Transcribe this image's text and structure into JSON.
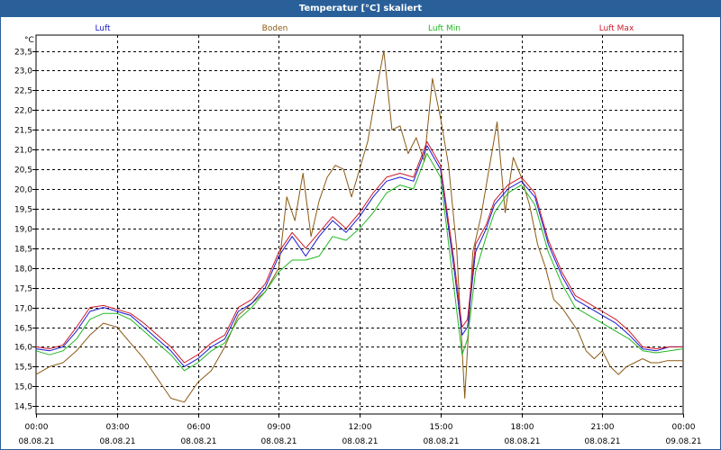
{
  "window": {
    "title": "Temperatur [°C] skaliert"
  },
  "chart_data": {
    "type": "line",
    "title": "Temperatur [°C] skaliert",
    "ylabel": "°C",
    "xlabel": "",
    "ylim": [
      14.3,
      23.9
    ],
    "xlim": [
      0,
      24
    ],
    "grid": true,
    "y_ticks": [
      14.5,
      15.0,
      15.5,
      16.0,
      16.5,
      17.0,
      17.5,
      18.0,
      18.5,
      19.0,
      19.5,
      20.0,
      20.5,
      21.0,
      21.5,
      22.0,
      22.5,
      23.0,
      23.5
    ],
    "y_tick_labels": [
      "14,5",
      "15,0",
      "15,5",
      "16,0",
      "16,5",
      "17,0",
      "17,5",
      "18,0",
      "18,5",
      "19,0",
      "19,5",
      "20,0",
      "20,5",
      "21,0",
      "21,5",
      "22,0",
      "22,5",
      "23,0",
      "23,5"
    ],
    "x_ticks": [
      {
        "value": 0,
        "time": "00:00",
        "date": "08.08.21"
      },
      {
        "value": 3,
        "time": "03:00",
        "date": "08.08.21"
      },
      {
        "value": 6,
        "time": "06:00",
        "date": "08.08.21"
      },
      {
        "value": 9,
        "time": "09:00",
        "date": "08.08.21"
      },
      {
        "value": 12,
        "time": "12:00",
        "date": "08.08.21"
      },
      {
        "value": 15,
        "time": "15:00",
        "date": "08.08.21"
      },
      {
        "value": 18,
        "time": "18:00",
        "date": "08.08.21"
      },
      {
        "value": 21,
        "time": "21:00",
        "date": "08.08.21"
      },
      {
        "value": 24,
        "time": "00:00",
        "date": "09.08.21"
      }
    ],
    "series": [
      {
        "name": "Luft",
        "color": "#1a1ad0",
        "x": [
          0,
          0.5,
          1,
          1.5,
          2,
          2.5,
          3,
          3.5,
          4,
          4.5,
          5,
          5.5,
          6,
          6.5,
          7,
          7.5,
          8,
          8.5,
          9,
          9.5,
          10,
          10.5,
          11,
          11.5,
          12,
          12.5,
          13,
          13.5,
          14,
          14.5,
          15,
          15.5,
          15.8,
          16,
          16.3,
          16.7,
          17,
          17.5,
          18,
          18.5,
          19,
          19.5,
          20,
          20.5,
          21,
          21.5,
          22,
          22.5,
          23,
          23.5,
          24
        ],
        "values": [
          15.95,
          15.9,
          16.0,
          16.4,
          16.9,
          17.0,
          16.9,
          16.8,
          16.5,
          16.2,
          15.9,
          15.5,
          15.7,
          16.0,
          16.2,
          16.9,
          17.1,
          17.5,
          18.3,
          18.8,
          18.3,
          18.8,
          19.2,
          18.9,
          19.3,
          19.8,
          20.2,
          20.3,
          20.2,
          21.1,
          20.5,
          18.0,
          16.3,
          16.5,
          18.4,
          19.0,
          19.6,
          20.0,
          20.2,
          19.8,
          18.6,
          17.8,
          17.2,
          17.0,
          16.8,
          16.6,
          16.3,
          15.95,
          15.9,
          16.0,
          16.0
        ]
      },
      {
        "name": "Boden",
        "color": "#8b5a14",
        "x": [
          0,
          0.5,
          1,
          1.5,
          2,
          2.5,
          3,
          3.5,
          4,
          4.5,
          5,
          5.5,
          6,
          6.5,
          7,
          7.5,
          8,
          8.5,
          9,
          9.3,
          9.6,
          9.9,
          10.2,
          10.5,
          10.8,
          11.1,
          11.4,
          11.7,
          12,
          12.3,
          12.6,
          12.9,
          13.2,
          13.5,
          13.8,
          14.1,
          14.4,
          14.7,
          15,
          15.3,
          15.6,
          15.9,
          16.2,
          16.5,
          16.8,
          17.1,
          17.4,
          17.7,
          18,
          18.3,
          18.6,
          18.9,
          19.2,
          19.5,
          19.8,
          20.1,
          20.4,
          20.7,
          21,
          21.3,
          21.6,
          21.9,
          22.2,
          22.5,
          22.8,
          23.1,
          23.4,
          23.7,
          24
        ],
        "values": [
          15.3,
          15.5,
          15.6,
          15.9,
          16.3,
          16.6,
          16.5,
          16.1,
          15.7,
          15.2,
          14.7,
          14.6,
          15.1,
          15.4,
          16.0,
          16.8,
          17.1,
          17.4,
          18.0,
          19.8,
          19.2,
          20.4,
          18.8,
          19.7,
          20.3,
          20.6,
          20.5,
          19.8,
          20.5,
          21.2,
          22.4,
          23.5,
          21.5,
          21.6,
          20.9,
          21.3,
          20.7,
          22.8,
          21.8,
          20.6,
          18.5,
          14.7,
          18.4,
          19.3,
          20.5,
          21.7,
          19.4,
          20.8,
          20.3,
          19.6,
          18.6,
          18.0,
          17.2,
          17.0,
          16.7,
          16.4,
          15.9,
          15.7,
          15.9,
          15.5,
          15.3,
          15.5,
          15.6,
          15.7,
          15.6,
          15.6,
          15.65,
          15.65,
          15.65
        ]
      },
      {
        "name": "Luft Min",
        "color": "#22b822",
        "x": [
          0,
          0.5,
          1,
          1.5,
          2,
          2.5,
          3,
          3.5,
          4,
          4.5,
          5,
          5.5,
          6,
          6.5,
          7,
          7.5,
          8,
          8.5,
          9,
          9.5,
          10,
          10.5,
          11,
          11.5,
          12,
          12.5,
          13,
          13.5,
          14,
          14.5,
          15,
          15.5,
          15.8,
          16,
          16.3,
          16.7,
          17,
          17.5,
          18,
          18.5,
          19,
          19.5,
          20,
          20.5,
          21,
          21.5,
          22,
          22.5,
          23,
          23.5,
          24
        ],
        "values": [
          15.9,
          15.8,
          15.9,
          16.2,
          16.7,
          16.85,
          16.85,
          16.7,
          16.4,
          16.1,
          15.8,
          15.4,
          15.6,
          15.9,
          16.1,
          16.7,
          17.0,
          17.4,
          17.9,
          18.2,
          18.2,
          18.3,
          18.8,
          18.7,
          19.0,
          19.4,
          19.9,
          20.1,
          20.0,
          20.9,
          20.3,
          17.5,
          15.8,
          16.2,
          17.9,
          18.8,
          19.4,
          19.9,
          20.1,
          19.6,
          18.4,
          17.6,
          17.0,
          16.8,
          16.6,
          16.4,
          16.2,
          15.9,
          15.85,
          15.9,
          15.95
        ]
      },
      {
        "name": "Luft Max",
        "color": "#cc1a2a",
        "x": [
          0,
          0.5,
          1,
          1.5,
          2,
          2.5,
          3,
          3.5,
          4,
          4.5,
          5,
          5.5,
          6,
          6.5,
          7,
          7.5,
          8,
          8.5,
          9,
          9.5,
          10,
          10.5,
          11,
          11.5,
          12,
          12.5,
          13,
          13.5,
          14,
          14.5,
          15,
          15.5,
          15.8,
          16,
          16.3,
          16.7,
          17,
          17.5,
          18,
          18.5,
          19,
          19.5,
          20,
          20.5,
          21,
          21.5,
          22,
          22.5,
          23,
          23.5,
          24
        ],
        "values": [
          16.0,
          15.95,
          16.05,
          16.5,
          17.0,
          17.05,
          16.95,
          16.85,
          16.6,
          16.3,
          16.0,
          15.6,
          15.8,
          16.1,
          16.3,
          17.0,
          17.2,
          17.6,
          18.4,
          18.9,
          18.5,
          18.9,
          19.3,
          19.0,
          19.4,
          19.9,
          20.3,
          20.4,
          20.3,
          21.2,
          20.6,
          18.2,
          16.5,
          16.7,
          18.6,
          19.1,
          19.7,
          20.1,
          20.3,
          19.9,
          18.7,
          17.9,
          17.3,
          17.1,
          16.9,
          16.7,
          16.4,
          16.0,
          15.95,
          16.0,
          16.0
        ]
      }
    ]
  }
}
